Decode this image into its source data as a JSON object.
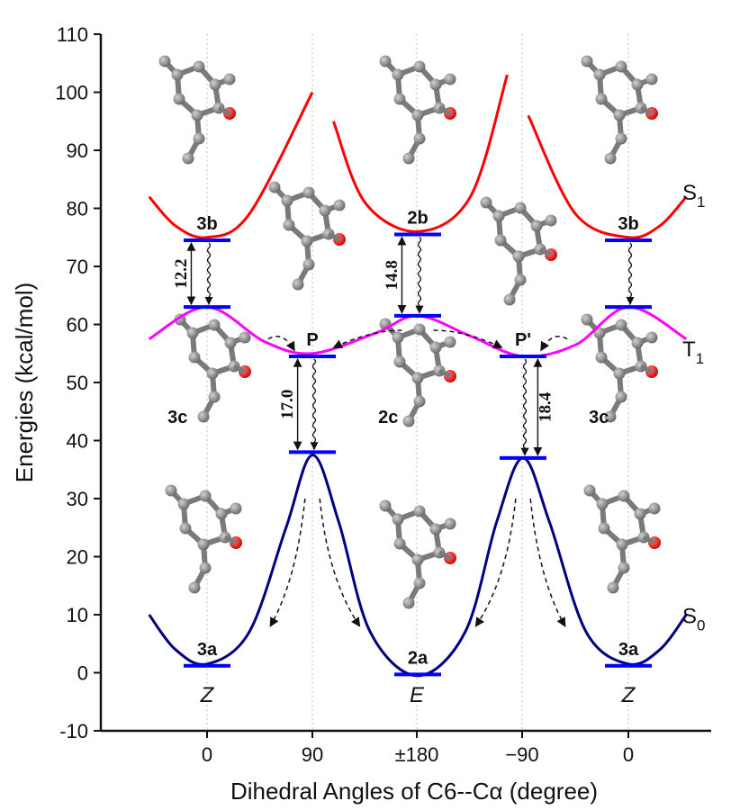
{
  "chart_data": {
    "type": "line",
    "title": "",
    "xlabel": "Dihedral Angles of C6--Cα (degree)",
    "ylabel": "Energies (kcal/mol)",
    "ylim": [
      -10,
      110
    ],
    "y_ticks": [
      -10,
      0,
      10,
      20,
      30,
      40,
      50,
      60,
      70,
      80,
      90,
      100,
      110
    ],
    "x_ticks": [
      "0",
      "90",
      "±180",
      "−90",
      "0"
    ],
    "x_isomer_labels": [
      "Z",
      "",
      "E",
      "",
      "Z"
    ],
    "grid": "vertical dotted",
    "colors": {
      "S1": "#ff0000",
      "T1": "#ff00ff",
      "S0": "#000080",
      "level": "#0000ff",
      "atom": "#777777",
      "oxygen": "#ff0000"
    },
    "series": [
      {
        "name": "S1",
        "segments": [
          {
            "x": [
              -0.55,
              -0.3,
              0,
              0.4,
              1.0
            ],
            "y": [
              82,
              77,
              75,
              79,
              100
            ]
          },
          {
            "x": [
              1.2,
              1.5,
              2.0,
              2.5,
              2.85
            ],
            "y": [
              95,
              81,
              76,
              82,
              103
            ]
          },
          {
            "x": [
              3.05,
              3.5,
              4.0,
              4.3,
              4.55
            ],
            "y": [
              96,
              79,
              75,
              77,
              82
            ]
          }
        ]
      },
      {
        "name": "T1",
        "x": [
          -0.55,
          0,
          0.55,
          1.0,
          1.6,
          2.0,
          2.5,
          3.0,
          3.5,
          4.0,
          4.55
        ],
        "y": [
          57.5,
          63,
          57,
          55,
          58.5,
          61.5,
          58,
          54.5,
          56.5,
          63,
          57.5
        ]
      },
      {
        "name": "S0",
        "x": [
          -0.55,
          -0.3,
          0,
          0.4,
          0.75,
          1.0,
          1.25,
          1.55,
          2.0,
          2.45,
          2.75,
          3.0,
          3.25,
          3.6,
          4.0,
          4.3,
          4.55
        ],
        "y": [
          10,
          4,
          1.5,
          7,
          25,
          37.5,
          26,
          7,
          -0.5,
          7,
          26,
          37,
          26,
          7,
          1.5,
          4,
          10
        ]
      }
    ],
    "levels": [
      {
        "x": 0,
        "y": 74.5,
        "label": "3b"
      },
      {
        "x": 2,
        "y": 75.5,
        "label": "2b"
      },
      {
        "x": 4,
        "y": 74.5,
        "label": "3b"
      },
      {
        "x": 0,
        "y": 63,
        "label": ""
      },
      {
        "x": 2,
        "y": 61.5,
        "label": ""
      },
      {
        "x": 4,
        "y": 63,
        "label": ""
      },
      {
        "x": 1,
        "y": 54.5,
        "label": "P"
      },
      {
        "x": 3,
        "y": 54.5,
        "label": "P'"
      },
      {
        "x": 1,
        "y": 38,
        "label": ""
      },
      {
        "x": 3,
        "y": 37,
        "label": ""
      },
      {
        "x": 0,
        "y": 1.2,
        "label": "3a"
      },
      {
        "x": 2,
        "y": -0.3,
        "label": "2a"
      },
      {
        "x": 4,
        "y": 1.2,
        "label": "3a"
      }
    ],
    "state_labels": [
      {
        "text": "3c",
        "x": -0.28,
        "y": 43
      },
      {
        "text": "2c",
        "x": 1.72,
        "y": 43
      },
      {
        "text": "3c",
        "x": 3.72,
        "y": 43
      }
    ],
    "energy_gaps": [
      {
        "value": "12.2",
        "x": -0.15,
        "y1": 74.5,
        "y2": 63
      },
      {
        "value": "14.8",
        "x": 1.85,
        "y1": 75.5,
        "y2": 61.5
      },
      {
        "value": "17.0",
        "x": 0.86,
        "y1": 54.5,
        "y2": 38
      },
      {
        "value": "18.4",
        "x": 3.14,
        "y1": 54.5,
        "y2": 37
      }
    ],
    "curve_labels": [
      {
        "base": "S",
        "sub": "1",
        "y": 81.5
      },
      {
        "base": "T",
        "sub": "1",
        "y": 54.5
      },
      {
        "base": "S",
        "sub": "0",
        "y": 8.5
      }
    ]
  }
}
